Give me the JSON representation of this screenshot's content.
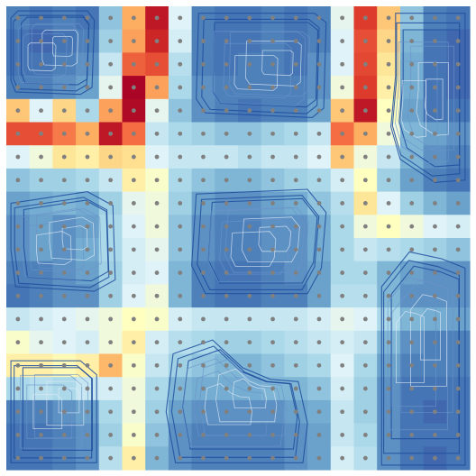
{
  "chart_data": {
    "type": "heatmap",
    "rows": 20,
    "cols": 20,
    "colormap": "RdYlBu_r",
    "vmin": 0,
    "vmax": 1,
    "grid": false,
    "legend": "none",
    "marker_color": "#808080",
    "contour_color": "#1f4e9e",
    "contour_highlight": "#dfe9f5",
    "values": [
      [
        0.12,
        0.1,
        0.12,
        0.1,
        0.25,
        0.7,
        0.95,
        0.4,
        0.12,
        0.1,
        0.1,
        0.12,
        0.1,
        0.12,
        0.42,
        0.88,
        0.65,
        0.25,
        0.12,
        0.1
      ],
      [
        0.1,
        0.08,
        0.1,
        0.12,
        0.28,
        0.72,
        0.92,
        0.38,
        0.12,
        0.1,
        0.1,
        0.12,
        0.1,
        0.12,
        0.4,
        0.85,
        0.62,
        0.22,
        0.1,
        0.08
      ],
      [
        0.1,
        0.1,
        0.12,
        0.15,
        0.35,
        0.82,
        0.85,
        0.32,
        0.12,
        0.1,
        0.12,
        0.12,
        0.1,
        0.15,
        0.4,
        0.86,
        0.58,
        0.2,
        0.1,
        0.08
      ],
      [
        0.12,
        0.12,
        0.15,
        0.18,
        0.42,
        0.99,
        0.72,
        0.3,
        0.15,
        0.12,
        0.12,
        0.12,
        0.12,
        0.15,
        0.45,
        0.88,
        0.55,
        0.2,
        0.1,
        0.08
      ],
      [
        0.65,
        0.4,
        0.62,
        0.3,
        0.72,
        0.98,
        0.42,
        0.25,
        0.15,
        0.12,
        0.1,
        0.12,
        0.12,
        0.18,
        0.65,
        0.95,
        0.5,
        0.18,
        0.1,
        0.1
      ],
      [
        0.85,
        0.85,
        0.78,
        0.7,
        0.95,
        0.8,
        0.35,
        0.3,
        0.28,
        0.25,
        0.25,
        0.28,
        0.3,
        0.35,
        0.8,
        0.7,
        0.45,
        0.22,
        0.18,
        0.15
      ],
      [
        0.4,
        0.45,
        0.58,
        0.55,
        0.62,
        0.6,
        0.4,
        0.35,
        0.35,
        0.35,
        0.32,
        0.35,
        0.35,
        0.4,
        0.65,
        0.45,
        0.35,
        0.22,
        0.15,
        0.12
      ],
      [
        0.25,
        0.28,
        0.28,
        0.3,
        0.35,
        0.55,
        0.48,
        0.3,
        0.25,
        0.22,
        0.22,
        0.25,
        0.28,
        0.3,
        0.38,
        0.5,
        0.28,
        0.18,
        0.12,
        0.1
      ],
      [
        0.18,
        0.2,
        0.22,
        0.2,
        0.28,
        0.42,
        0.45,
        0.28,
        0.18,
        0.15,
        0.15,
        0.18,
        0.2,
        0.25,
        0.32,
        0.58,
        0.4,
        0.28,
        0.22,
        0.18
      ],
      [
        0.15,
        0.18,
        0.15,
        0.18,
        0.3,
        0.4,
        0.45,
        0.25,
        0.15,
        0.12,
        0.12,
        0.15,
        0.15,
        0.2,
        0.3,
        0.45,
        0.5,
        0.45,
        0.4,
        0.38
      ],
      [
        0.15,
        0.18,
        0.15,
        0.2,
        0.3,
        0.38,
        0.42,
        0.25,
        0.15,
        0.12,
        0.12,
        0.15,
        0.15,
        0.2,
        0.3,
        0.35,
        0.32,
        0.3,
        0.28,
        0.25
      ],
      [
        0.12,
        0.12,
        0.15,
        0.18,
        0.28,
        0.38,
        0.4,
        0.22,
        0.12,
        0.1,
        0.1,
        0.12,
        0.15,
        0.18,
        0.3,
        0.3,
        0.22,
        0.18,
        0.15,
        0.15
      ],
      [
        0.1,
        0.12,
        0.15,
        0.15,
        0.28,
        0.4,
        0.45,
        0.22,
        0.12,
        0.1,
        0.1,
        0.12,
        0.12,
        0.18,
        0.32,
        0.32,
        0.22,
        0.15,
        0.15,
        0.15
      ],
      [
        0.35,
        0.38,
        0.4,
        0.42,
        0.45,
        0.5,
        0.48,
        0.38,
        0.35,
        0.35,
        0.35,
        0.35,
        0.35,
        0.38,
        0.42,
        0.4,
        0.3,
        0.22,
        0.2,
        0.18
      ],
      [
        0.48,
        0.42,
        0.4,
        0.38,
        0.45,
        0.55,
        0.38,
        0.32,
        0.3,
        0.28,
        0.28,
        0.3,
        0.32,
        0.35,
        0.38,
        0.35,
        0.22,
        0.15,
        0.12,
        0.12
      ],
      [
        0.55,
        0.55,
        0.52,
        0.55,
        0.68,
        0.48,
        0.35,
        0.28,
        0.25,
        0.22,
        0.22,
        0.25,
        0.28,
        0.3,
        0.4,
        0.3,
        0.18,
        0.12,
        0.12,
        0.12
      ],
      [
        0.3,
        0.32,
        0.3,
        0.35,
        0.38,
        0.45,
        0.3,
        0.22,
        0.2,
        0.2,
        0.2,
        0.22,
        0.22,
        0.25,
        0.38,
        0.28,
        0.15,
        0.1,
        0.1,
        0.1
      ],
      [
        0.12,
        0.12,
        0.15,
        0.18,
        0.3,
        0.45,
        0.28,
        0.18,
        0.15,
        0.15,
        0.15,
        0.15,
        0.18,
        0.2,
        0.35,
        0.28,
        0.15,
        0.1,
        0.08,
        0.1
      ],
      [
        0.1,
        0.1,
        0.12,
        0.15,
        0.28,
        0.48,
        0.25,
        0.15,
        0.12,
        0.12,
        0.12,
        0.12,
        0.15,
        0.18,
        0.35,
        0.3,
        0.15,
        0.1,
        0.1,
        0.1
      ],
      [
        0.1,
        0.1,
        0.12,
        0.15,
        0.32,
        0.55,
        0.22,
        0.15,
        0.12,
        0.12,
        0.12,
        0.12,
        0.15,
        0.18,
        0.38,
        0.32,
        0.15,
        0.1,
        0.08,
        0.1
      ]
    ]
  }
}
